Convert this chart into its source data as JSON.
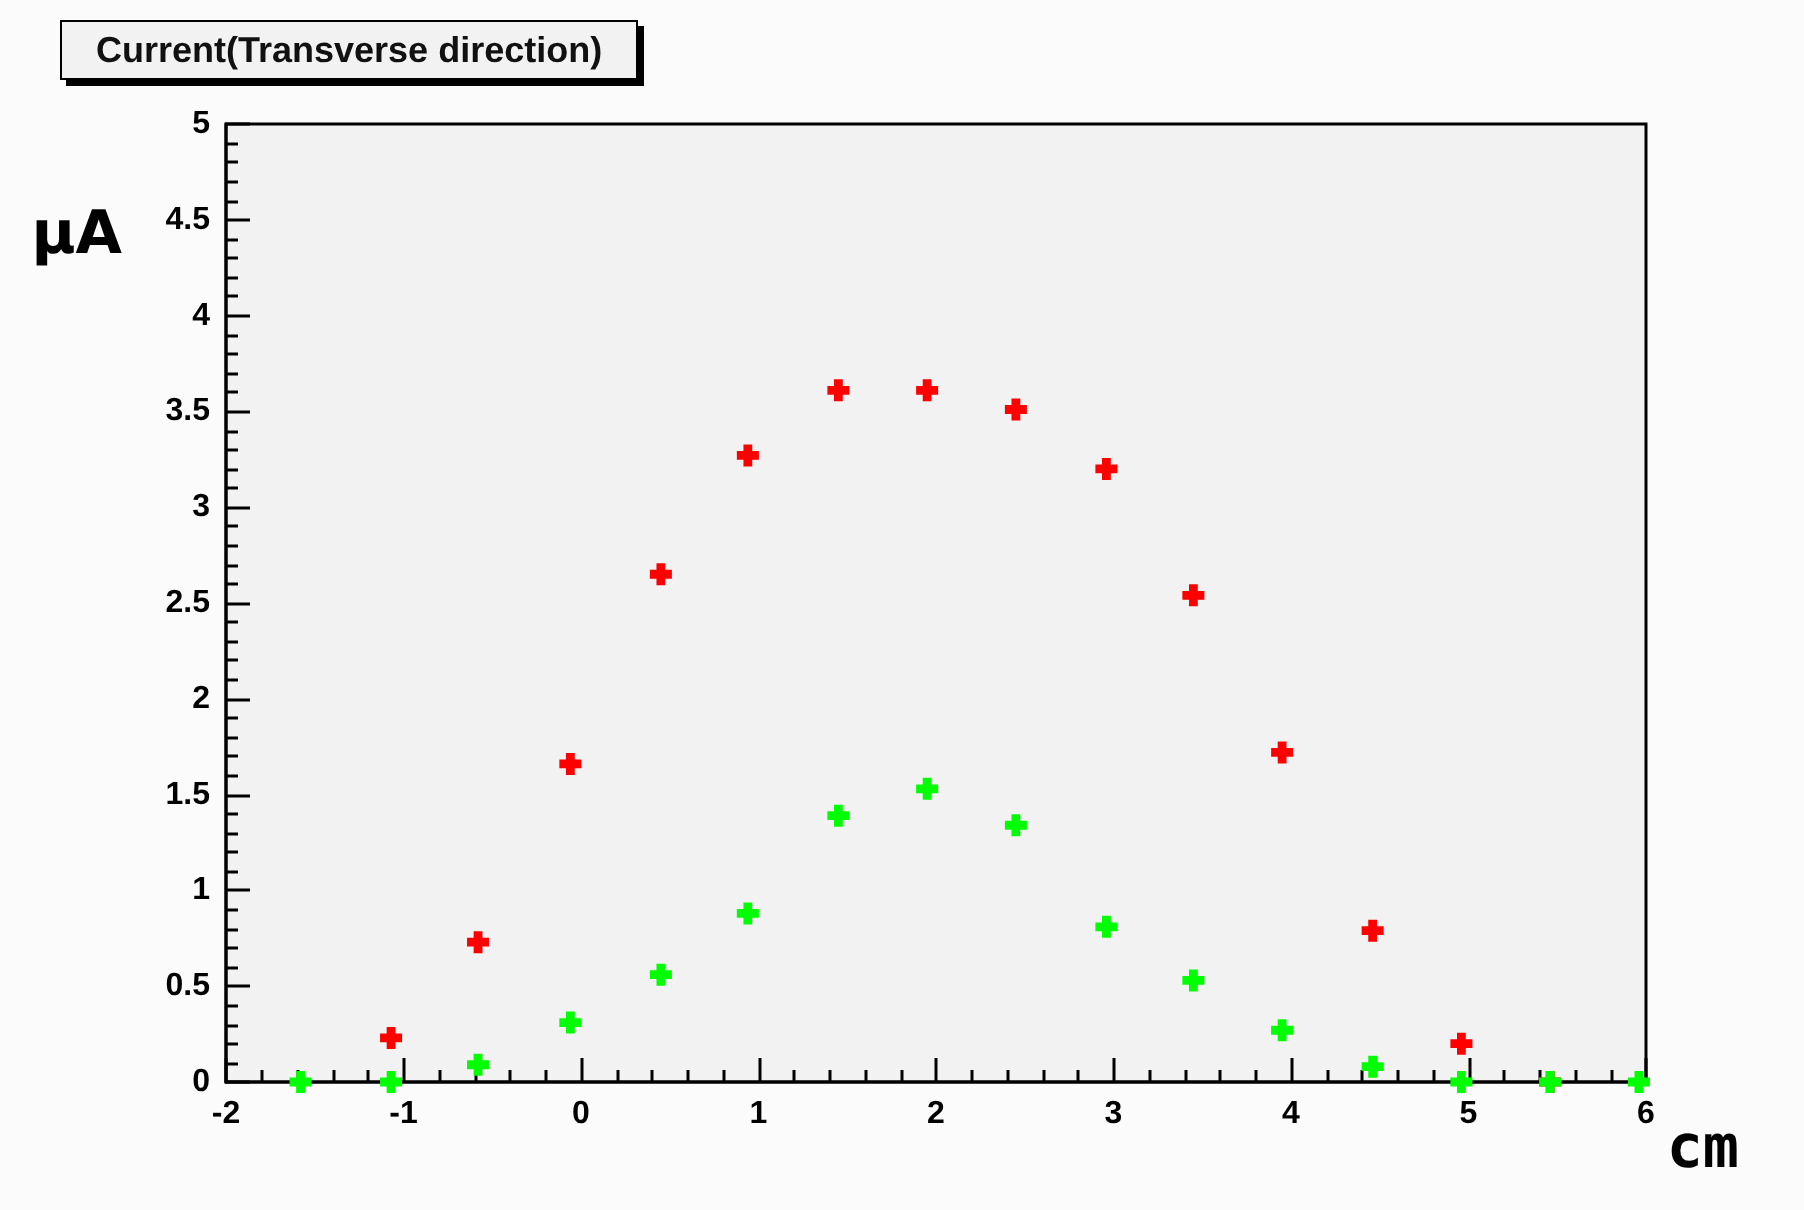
{
  "chart_data": {
    "type": "scatter",
    "title": "Current(Transverse direction)",
    "xlabel": "cm",
    "ylabel": "μA",
    "xlim": [
      -2,
      6
    ],
    "xticks": [
      -2,
      -1,
      0,
      1,
      2,
      3,
      4,
      5,
      6
    ],
    "ylim": [
      0,
      5
    ],
    "yticks": [
      0,
      0.5,
      1,
      1.5,
      2,
      2.5,
      3,
      3.5,
      4,
      4.5,
      5
    ],
    "grid": false,
    "marker": "cross",
    "series": [
      {
        "color": "#ff0000",
        "x": [
          -1.07,
          -0.58,
          -0.06,
          0.45,
          0.94,
          1.45,
          1.95,
          2.45,
          2.96,
          3.45,
          3.95,
          4.46,
          4.96,
          5.46
        ],
        "values": [
          0.23,
          0.73,
          1.66,
          2.65,
          3.27,
          3.61,
          3.61,
          3.51,
          3.2,
          2.54,
          1.72,
          0.79,
          0.2,
          0
        ]
      },
      {
        "color": "#00ff00",
        "x": [
          -1.58,
          -1.07,
          -0.58,
          -0.06,
          0.45,
          0.94,
          1.45,
          1.95,
          2.45,
          2.96,
          3.45,
          3.95,
          4.46,
          4.96,
          5.46,
          5.96
        ],
        "values": [
          0,
          0,
          0.09,
          0.31,
          0.56,
          0.88,
          1.39,
          1.53,
          1.34,
          0.81,
          0.53,
          0.27,
          0.08,
          0,
          0,
          0
        ]
      }
    ]
  }
}
